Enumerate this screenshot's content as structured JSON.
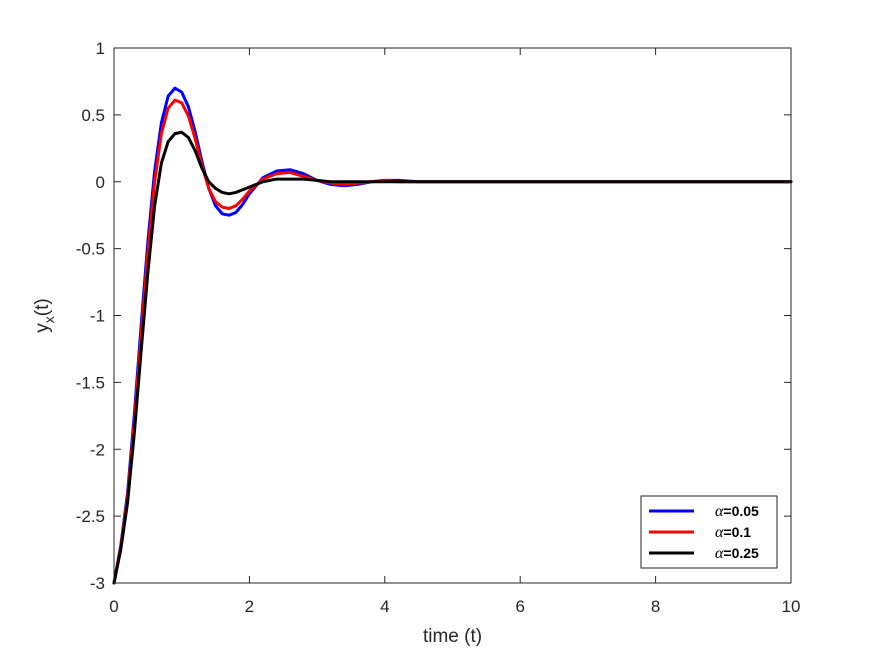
{
  "chart_data": {
    "type": "line",
    "xlabel": "time (t)",
    "ylabel": "y",
    "ylabel_subscript": "x",
    "ylabel_suffix": "(t)",
    "xlim": [
      0,
      10
    ],
    "ylim": [
      -3,
      1
    ],
    "xticks": [
      "0",
      "2",
      "4",
      "6",
      "8",
      "10"
    ],
    "yticks": [
      "1",
      "0.5",
      "0",
      "-0.5",
      "-1",
      "-1.5",
      "-2",
      "-2.5",
      "-3"
    ],
    "grid": false,
    "legend_position": "bottom-right",
    "series": [
      {
        "name": "α=0.05",
        "symbol": "α",
        "value_label": "=0.05",
        "color": "#0000ff",
        "x": [
          0,
          0.1,
          0.2,
          0.3,
          0.4,
          0.5,
          0.6,
          0.7,
          0.8,
          0.9,
          1.0,
          1.1,
          1.2,
          1.3,
          1.4,
          1.5,
          1.6,
          1.7,
          1.8,
          1.9,
          2.0,
          2.2,
          2.4,
          2.6,
          2.8,
          3.0,
          3.2,
          3.4,
          3.6,
          3.8,
          4.0,
          4.2,
          4.5,
          5.0,
          6.0,
          8.0,
          10.0
        ],
        "y": [
          -3.0,
          -2.72,
          -2.33,
          -1.74,
          -1.08,
          -0.45,
          0.08,
          0.44,
          0.64,
          0.7,
          0.67,
          0.56,
          0.37,
          0.15,
          -0.05,
          -0.18,
          -0.24,
          -0.25,
          -0.23,
          -0.17,
          -0.09,
          0.03,
          0.08,
          0.09,
          0.06,
          0.01,
          -0.02,
          -0.03,
          -0.02,
          0.0,
          0.01,
          0.01,
          0.0,
          0.0,
          0.0,
          0.0,
          0.0
        ]
      },
      {
        "name": "α=0.1",
        "symbol": "α",
        "value_label": "=0.1",
        "color": "#ff0000",
        "x": [
          0,
          0.1,
          0.2,
          0.3,
          0.4,
          0.5,
          0.6,
          0.7,
          0.8,
          0.9,
          1.0,
          1.1,
          1.2,
          1.3,
          1.4,
          1.5,
          1.6,
          1.7,
          1.8,
          1.9,
          2.0,
          2.2,
          2.4,
          2.6,
          2.8,
          3.0,
          3.2,
          3.4,
          3.6,
          3.8,
          4.0,
          4.2,
          4.5,
          5.0,
          6.0,
          8.0,
          10.0
        ],
        "y": [
          -3.0,
          -2.73,
          -2.36,
          -1.8,
          -1.15,
          -0.53,
          0.0,
          0.36,
          0.55,
          0.61,
          0.59,
          0.49,
          0.32,
          0.12,
          -0.05,
          -0.15,
          -0.19,
          -0.2,
          -0.18,
          -0.13,
          -0.07,
          0.02,
          0.06,
          0.07,
          0.04,
          0.01,
          -0.01,
          -0.02,
          -0.01,
          0.0,
          0.01,
          0.0,
          0.0,
          0.0,
          0.0,
          0.0,
          0.0
        ]
      },
      {
        "name": "α=0.25",
        "symbol": "α",
        "value_label": "=0.25",
        "color": "#000000",
        "x": [
          0,
          0.1,
          0.2,
          0.3,
          0.4,
          0.5,
          0.6,
          0.7,
          0.8,
          0.9,
          1.0,
          1.1,
          1.2,
          1.3,
          1.4,
          1.5,
          1.6,
          1.7,
          1.8,
          1.9,
          2.0,
          2.2,
          2.4,
          2.6,
          2.8,
          3.0,
          3.2,
          3.4,
          3.6,
          3.8,
          4.0,
          4.2,
          4.5,
          5.0,
          6.0,
          8.0,
          10.0
        ],
        "y": [
          -3.0,
          -2.75,
          -2.4,
          -1.88,
          -1.27,
          -0.68,
          -0.18,
          0.14,
          0.3,
          0.36,
          0.37,
          0.33,
          0.23,
          0.1,
          0.0,
          -0.05,
          -0.08,
          -0.09,
          -0.08,
          -0.06,
          -0.04,
          0.0,
          0.02,
          0.02,
          0.02,
          0.01,
          0.0,
          0.0,
          0.0,
          0.0,
          0.0,
          0.0,
          0.0,
          0.0,
          0.0,
          0.0,
          0.0
        ]
      }
    ]
  }
}
